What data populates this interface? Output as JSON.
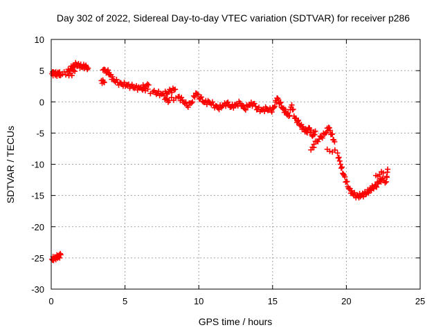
{
  "chart_data": {
    "type": "scatter",
    "title": "Day 302 of 2022, Sidereal Day-to-day VTEC variation (SDTVAR) for receiver p286",
    "xlabel": "GPS time / hours",
    "ylabel": "SDTVAR / TECUs",
    "xlim": [
      0,
      25
    ],
    "ylim": [
      -30,
      10
    ],
    "xticks": [
      0,
      5,
      10,
      15,
      20,
      25
    ],
    "yticks": [
      -30,
      -25,
      -20,
      -15,
      -10,
      -5,
      0,
      5,
      10
    ],
    "xtick_labels": [
      "0",
      "5",
      "10",
      "15",
      "20",
      "25"
    ],
    "ytick_labels": [
      "-30",
      "-25",
      "-20",
      "-15",
      "-10",
      "-5",
      "0",
      "5",
      "10"
    ],
    "grid": true,
    "marker": "plus",
    "series_color": "#ff0000",
    "series": [
      {
        "name": "SDTVAR",
        "points": [
          [
            0.05,
            4.5
          ],
          [
            0.2,
            4.6
          ],
          [
            0.35,
            4.4
          ],
          [
            0.5,
            4.6
          ],
          [
            0.65,
            4.3
          ],
          [
            1.1,
            4.8
          ],
          [
            1.3,
            5.3
          ],
          [
            1.5,
            5.7
          ],
          [
            1.7,
            6.0
          ],
          [
            1.9,
            5.8
          ],
          [
            2.1,
            5.6
          ],
          [
            2.3,
            5.7
          ],
          [
            2.5,
            5.4
          ],
          [
            1.2,
            4.2
          ],
          [
            1.6,
            4.9
          ],
          [
            3.4,
            3.4
          ],
          [
            3.6,
            3.1
          ],
          [
            3.5,
            5.1
          ],
          [
            3.8,
            4.9
          ],
          [
            4.0,
            4.3
          ],
          [
            4.2,
            3.6
          ],
          [
            4.5,
            3.1
          ],
          [
            4.8,
            2.8
          ],
          [
            5.1,
            2.7
          ],
          [
            5.4,
            2.5
          ],
          [
            5.7,
            2.3
          ],
          [
            6.0,
            2.2
          ],
          [
            6.3,
            2.4
          ],
          [
            6.6,
            2.7
          ],
          [
            6.2,
            1.9
          ],
          [
            6.9,
            1.6
          ],
          [
            7.2,
            1.4
          ],
          [
            7.5,
            1.2
          ],
          [
            7.8,
            1.4
          ],
          [
            8.1,
            1.8
          ],
          [
            8.4,
            2.0
          ],
          [
            7.7,
            0.4
          ],
          [
            8.0,
            0.2
          ],
          [
            8.6,
            0.8
          ],
          [
            8.9,
            0.3
          ],
          [
            9.2,
            -0.6
          ],
          [
            9.5,
            -0.2
          ],
          [
            9.8,
            1.4
          ],
          [
            10.1,
            0.6
          ],
          [
            10.4,
            -0.1
          ],
          [
            10.7,
            0.0
          ],
          [
            11.0,
            -0.5
          ],
          [
            11.3,
            -1.0
          ],
          [
            11.6,
            -0.7
          ],
          [
            11.9,
            -0.2
          ],
          [
            12.2,
            -0.8
          ],
          [
            12.5,
            -0.5
          ],
          [
            12.8,
            -0.2
          ],
          [
            13.1,
            -1.1
          ],
          [
            13.4,
            -0.5
          ],
          [
            13.7,
            -0.3
          ],
          [
            14.0,
            -1.2
          ],
          [
            14.3,
            -1.3
          ],
          [
            14.6,
            -1.1
          ],
          [
            14.9,
            -1.4
          ],
          [
            15.1,
            -0.9
          ],
          [
            15.3,
            0.6
          ],
          [
            15.5,
            -0.2
          ],
          [
            15.7,
            -1.1
          ],
          [
            15.9,
            -1.6
          ],
          [
            16.1,
            -2.3
          ],
          [
            16.3,
            -0.5
          ],
          [
            16.5,
            -2.6
          ],
          [
            16.7,
            -3.1
          ],
          [
            16.9,
            -3.8
          ],
          [
            17.1,
            -4.3
          ],
          [
            17.3,
            -4.8
          ],
          [
            17.5,
            -4.2
          ],
          [
            17.7,
            -5.5
          ],
          [
            17.9,
            -4.7
          ],
          [
            17.8,
            -6.8
          ],
          [
            17.6,
            -7.7
          ],
          [
            18.0,
            -6.3
          ],
          [
            18.3,
            -5.6
          ],
          [
            18.6,
            -5.0
          ],
          [
            18.8,
            -4.1
          ],
          [
            19.0,
            -5.2
          ],
          [
            19.2,
            -6.4
          ],
          [
            18.7,
            -7.6
          ],
          [
            19.4,
            -8.2
          ],
          [
            19.6,
            -10.0
          ],
          [
            19.8,
            -11.6
          ],
          [
            20.0,
            -12.8
          ],
          [
            20.2,
            -14.0
          ],
          [
            20.4,
            -14.6
          ],
          [
            20.6,
            -15.0
          ],
          [
            20.8,
            -15.1
          ],
          [
            21.0,
            -15.0
          ],
          [
            21.2,
            -14.8
          ],
          [
            21.4,
            -14.5
          ],
          [
            21.6,
            -14.1
          ],
          [
            21.8,
            -13.7
          ],
          [
            22.0,
            -13.5
          ],
          [
            22.2,
            -12.8
          ],
          [
            22.4,
            -12.4
          ],
          [
            22.7,
            -12.8
          ],
          [
            22.8,
            -10.8
          ],
          [
            22.0,
            -11.8
          ],
          [
            22.5,
            -11.4
          ],
          [
            0.05,
            -25.2
          ],
          [
            0.2,
            -25.1
          ],
          [
            0.35,
            -24.9
          ],
          [
            0.5,
            -24.8
          ],
          [
            0.65,
            -24.5
          ]
        ]
      }
    ]
  }
}
